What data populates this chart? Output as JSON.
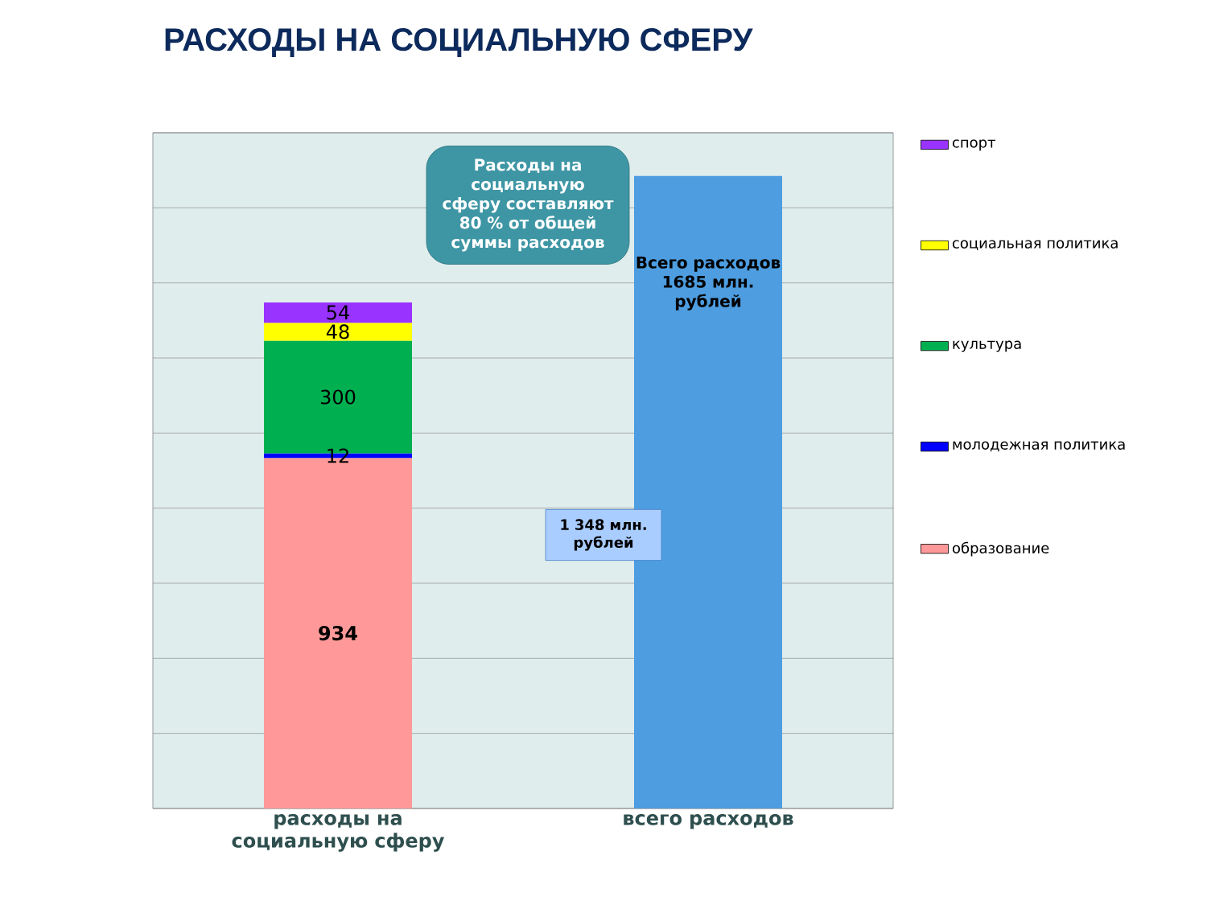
{
  "chart_data": {
    "type": "bar",
    "stacked": true,
    "title": "РАСХОДЫ НА СОЦИАЛЬНУЮ СФЕРУ",
    "categories": [
      "расходы на социальную сферу",
      "всего расходов"
    ],
    "series": [
      {
        "name": "образование",
        "color": "#ff9999",
        "values": [
          934,
          null
        ],
        "value_labels": [
          "934",
          null
        ]
      },
      {
        "name": "молодежная политика",
        "color": "#0000ff",
        "values": [
          12,
          null
        ],
        "value_labels": [
          "12",
          null
        ]
      },
      {
        "name": "культура",
        "color": "#00b050",
        "values": [
          300,
          null
        ],
        "value_labels": [
          "300",
          null
        ]
      },
      {
        "name": "социальная политика",
        "color": "#ffff00",
        "values": [
          48,
          null
        ],
        "value_labels": [
          "48",
          null
        ]
      },
      {
        "name": "спорт",
        "color": "#9933ff",
        "values": [
          54,
          null
        ],
        "value_labels": [
          "54",
          null
        ]
      },
      {
        "color": "#4d9de0",
        "values": [
          null,
          1685
        ],
        "value_labels": [
          null,
          "Всего расходов 1685 млн. рублей"
        ]
      }
    ],
    "ylim": [
      0,
      1800
    ],
    "yticks": [
      {
        "value": 0,
        "label": null
      },
      {
        "value": 200,
        "label": null
      },
      {
        "value": 400,
        "label": null
      },
      {
        "value": 600,
        "label": null
      },
      {
        "value": 800,
        "label": null
      },
      {
        "value": 1000,
        "label": null
      },
      {
        "value": 1200,
        "label": null
      },
      {
        "value": 1400,
        "label": null
      },
      {
        "value": 1600,
        "label": null
      },
      {
        "value": 1800,
        "label": null
      }
    ],
    "tick_labels": "x",
    "grid": "y",
    "legend": "right",
    "annotations": [
      "Расходы на социальную сферу составляют 80 % от общей суммы расходов",
      "1 348 млн. рублей"
    ]
  }
}
